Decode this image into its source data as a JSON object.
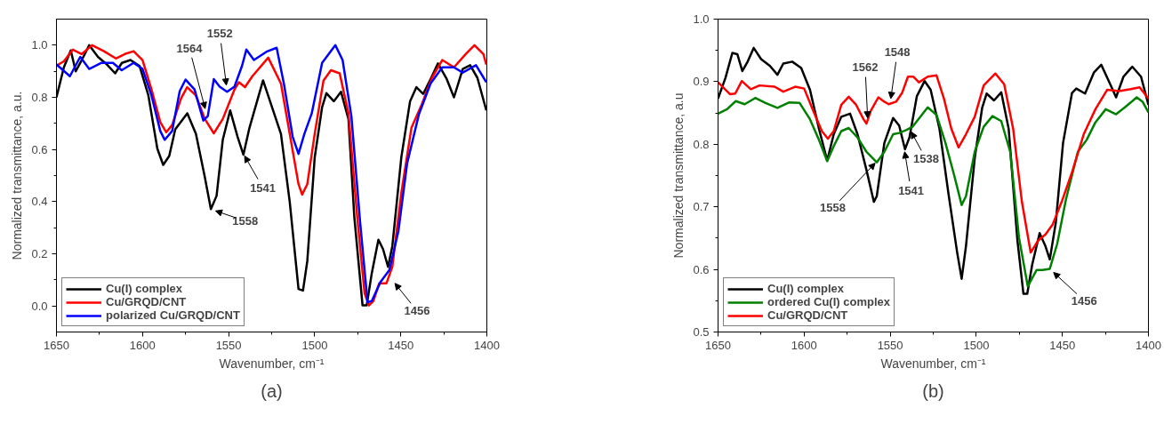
{
  "chart_data": [
    {
      "type": "line",
      "xlabel": "Wavenumber, cm⁻¹",
      "ylabel": "Normalized transmittance, a.u.",
      "xlim": [
        1650,
        1400
      ],
      "ylim": [
        -0.1,
        1.1
      ],
      "xticks": [
        1650,
        1600,
        1550,
        1500,
        1450,
        1400
      ],
      "yticks": [
        {
          "value": 0,
          "label": "0.0"
        },
        {
          "value": 0.2,
          "label": "0.2"
        },
        {
          "value": 0.4,
          "label": "0.4"
        },
        {
          "value": 0.6,
          "label": "0.6"
        },
        {
          "value": 0.8,
          "label": "0.8"
        },
        {
          "value": 1,
          "label": "1.0"
        }
      ],
      "grid": false,
      "legend": "bottom left",
      "line_style": "solid",
      "marker": "none",
      "series": [
        {
          "name": "Cu(I) complex",
          "color": "#000000",
          "x": [
            1650,
            1645.7,
            1641.7,
            1638.8,
            1635.3,
            1631,
            1625.9,
            1620.7,
            1615.9,
            1612,
            1607,
            1601.7,
            1596.6,
            1591.4,
            1588,
            1584.5,
            1581,
            1574,
            1569,
            1564,
            1560.3,
            1557,
            1553.4,
            1549.1,
            1544.8,
            1541.4,
            1537.9,
            1530,
            1519.6,
            1514.5,
            1509.4,
            1506.8,
            1504.3,
            1500,
            1495.7,
            1493.2,
            1488.9,
            1484.7,
            1480.4,
            1477,
            1472.2,
            1469.8,
            1466.8,
            1463,
            1460.3,
            1457.4,
            1454.9,
            1449.7,
            1444.6,
            1440.9,
            1437,
            1432.7,
            1428.4,
            1423.3,
            1419.1,
            1414,
            1409.7,
            1405.5,
            1400.3
          ],
          "values": [
            0.8,
            0.915,
            0.98,
            0.9,
            0.943,
            1.0,
            0.955,
            0.926,
            0.892,
            0.932,
            0.943,
            0.92,
            0.807,
            0.603,
            0.541,
            0.575,
            0.677,
            0.739,
            0.66,
            0.5,
            0.371,
            0.422,
            0.637,
            0.75,
            0.649,
            0.58,
            0.683,
            0.865,
            0.66,
            0.399,
            0.065,
            0.059,
            0.172,
            0.569,
            0.762,
            0.816,
            0.785,
            0.821,
            0.717,
            0.342,
            0.002,
            0.002,
            0.127,
            0.254,
            0.218,
            0.15,
            0.229,
            0.569,
            0.785,
            0.839,
            0.813,
            0.87,
            0.93,
            0.87,
            0.8,
            0.909,
            0.923,
            0.875,
            0.75
          ]
        },
        {
          "name": "Cu/GRQD/CNT",
          "color": "#ff0000",
          "x": [
            1650,
            1645.7,
            1640.5,
            1635.3,
            1629.3,
            1622.4,
            1615.5,
            1610.3,
            1605.2,
            1600,
            1594.8,
            1589.7,
            1586.2,
            1582.8,
            1577.6,
            1574.1,
            1569,
            1563.8,
            1558.6,
            1553.4,
            1546.6,
            1544,
            1540.5,
            1536.2,
            1527,
            1519.6,
            1514.5,
            1509.4,
            1507.3,
            1504.3,
            1500,
            1494.9,
            1490.6,
            1485.5,
            1480.4,
            1475.3,
            1471,
            1468.5,
            1465.9,
            1462.5,
            1458.3,
            1454.9,
            1449.7,
            1443.8,
            1437.8,
            1431.9,
            1425.9,
            1419.1,
            1412.3,
            1407.2,
            1402,
            1400.3
          ],
          "values": [
            0.921,
            0.938,
            0.983,
            0.966,
            1.0,
            0.977,
            0.949,
            0.966,
            0.977,
            0.943,
            0.83,
            0.705,
            0.666,
            0.694,
            0.796,
            0.839,
            0.807,
            0.717,
            0.662,
            0.717,
            0.83,
            0.858,
            0.839,
            0.881,
            0.952,
            0.853,
            0.66,
            0.467,
            0.427,
            0.467,
            0.66,
            0.864,
            0.904,
            0.892,
            0.739,
            0.342,
            0.048,
            0.002,
            0.019,
            0.087,
            0.087,
            0.15,
            0.433,
            0.683,
            0.773,
            0.875,
            0.943,
            0.915,
            0.966,
            1.0,
            0.966,
            0.926
          ]
        },
        {
          "name": "polarized Cu/GRQD/CNT",
          "color": "#0000ff",
          "x": [
            1650,
            1642.2,
            1636.2,
            1631,
            1624.1,
            1617.2,
            1612.1,
            1605.2,
            1600,
            1594.8,
            1589.7,
            1587.1,
            1582.8,
            1578.4,
            1575,
            1569.8,
            1564.7,
            1562.1,
            1558.6,
            1555.2,
            1550.9,
            1546.6,
            1542.2,
            1539.7,
            1535.3,
            1528,
            1522.1,
            1517.9,
            1512.8,
            1509.4,
            1506,
            1501.7,
            1495.7,
            1488,
            1483.8,
            1478.7,
            1473.6,
            1469.3,
            1466.8,
            1461.7,
            1456.6,
            1451.4,
            1446.3,
            1439.5,
            1432.7,
            1425.9,
            1419.1,
            1414,
            1406.3,
            1400.3
          ],
          "values": [
            0.926,
            0.881,
            0.955,
            0.909,
            0.932,
            0.932,
            0.904,
            0.932,
            0.909,
            0.807,
            0.671,
            0.637,
            0.671,
            0.824,
            0.868,
            0.83,
            0.711,
            0.728,
            0.87,
            0.841,
            0.821,
            0.841,
            0.921,
            0.983,
            0.943,
            0.975,
            0.99,
            0.853,
            0.649,
            0.583,
            0.66,
            0.739,
            0.932,
            1.0,
            0.943,
            0.728,
            0.32,
            0.014,
            0.019,
            0.093,
            0.138,
            0.286,
            0.547,
            0.734,
            0.853,
            0.915,
            0.915,
            0.895,
            0.923,
            0.858
          ]
        }
      ],
      "annotations": [
        {
          "text": "1564",
          "x": 1563,
          "y": 0.74
        },
        {
          "text": "1552",
          "x": 1551,
          "y": 0.83
        },
        {
          "text": "1558",
          "x": 1560,
          "y": 0.37
        },
        {
          "text": "1541",
          "x": 1542,
          "y": 0.59
        },
        {
          "text": "1456",
          "x": 1455,
          "y": 0.1
        },
        "(a)"
      ]
    },
    {
      "type": "line",
      "xlabel": "Wavenumber, cm⁻¹",
      "ylabel": "Normalized transmittance, a.u",
      "xlim": [
        1650,
        1400
      ],
      "ylim": [
        0.5,
        1.0
      ],
      "xticks": [
        1650,
        1600,
        1550,
        1500,
        1450,
        1400
      ],
      "yticks": [
        {
          "value": 0.5,
          "label": "0.5"
        },
        {
          "value": 0.6,
          "label": "0.6"
        },
        {
          "value": 0.7,
          "label": "0.7"
        },
        {
          "value": 0.8,
          "label": "0.8"
        },
        {
          "value": 0.9,
          "label": "0.9"
        },
        {
          "value": 1.0,
          "label": "1.0"
        }
      ],
      "grid": false,
      "legend": "bottom left",
      "line_style": "solid",
      "marker": "none",
      "series": [
        {
          "name": "Cu(I) complex",
          "color": "#000000",
          "x": [
            1650,
            1645.7,
            1641.7,
            1638.8,
            1635.9,
            1632.8,
            1629.3,
            1625,
            1619.8,
            1615.5,
            1612.1,
            1606.9,
            1601.7,
            1596.6,
            1591.4,
            1586.6,
            1582.8,
            1578.4,
            1573.3,
            1569,
            1563.8,
            1559.5,
            1557.8,
            1553.4,
            1548.3,
            1544.8,
            1541.4,
            1538.8,
            1534.5,
            1530,
            1526.5,
            1521.4,
            1516.2,
            1511.1,
            1508.5,
            1506,
            1500.9,
            1496.6,
            1494,
            1489.7,
            1485.5,
            1481.2,
            1476.1,
            1472.6,
            1470.4,
            1467.5,
            1463.2,
            1459.8,
            1457.3,
            1453.8,
            1449.6,
            1444.4,
            1441.9,
            1436.8,
            1431.6,
            1427.4,
            1422.2,
            1418.8,
            1414.5,
            1409.4,
            1404.3,
            1400
          ],
          "values": [
            0.873,
            0.906,
            0.946,
            0.944,
            0.917,
            0.932,
            0.954,
            0.936,
            0.925,
            0.911,
            0.929,
            0.932,
            0.922,
            0.887,
            0.825,
            0.774,
            0.816,
            0.844,
            0.849,
            0.816,
            0.759,
            0.708,
            0.717,
            0.802,
            0.842,
            0.83,
            0.792,
            0.811,
            0.877,
            0.901,
            0.887,
            0.825,
            0.722,
            0.627,
            0.585,
            0.637,
            0.778,
            0.858,
            0.881,
            0.87,
            0.883,
            0.825,
            0.646,
            0.561,
            0.561,
            0.608,
            0.658,
            0.637,
            0.616,
            0.675,
            0.802,
            0.882,
            0.889,
            0.881,
            0.915,
            0.927,
            0.896,
            0.875,
            0.908,
            0.924,
            0.908,
            0.863
          ]
        },
        {
          "name": "ordered Cu(I) complex",
          "color": "#008000",
          "x": [
            1650,
            1644.8,
            1639.7,
            1634.5,
            1628.4,
            1622.4,
            1615.5,
            1608.6,
            1602.6,
            1596.6,
            1591.4,
            1586.6,
            1582.8,
            1578.4,
            1574.1,
            1569,
            1563.8,
            1557.8,
            1553.4,
            1548.3,
            1544.8,
            1540.5,
            1537,
            1528.2,
            1523.1,
            1517.9,
            1512.8,
            1508.5,
            1506,
            1500.9,
            1495.7,
            1490.6,
            1485.5,
            1480.3,
            1475.2,
            1470.1,
            1465,
            1461.5,
            1457.3,
            1453,
            1447.9,
            1441,
            1435.9,
            1430.8,
            1424.8,
            1418.8,
            1413.7,
            1406.8,
            1403.4,
            1400
          ],
          "values": [
            0.849,
            0.856,
            0.869,
            0.864,
            0.874,
            0.866,
            0.858,
            0.867,
            0.866,
            0.84,
            0.807,
            0.773,
            0.797,
            0.821,
            0.826,
            0.811,
            0.788,
            0.771,
            0.788,
            0.816,
            0.818,
            0.823,
            0.828,
            0.859,
            0.847,
            0.802,
            0.75,
            0.703,
            0.717,
            0.788,
            0.828,
            0.845,
            0.837,
            0.788,
            0.651,
            0.573,
            0.599,
            0.599,
            0.601,
            0.641,
            0.712,
            0.788,
            0.807,
            0.835,
            0.856,
            0.848,
            0.859,
            0.875,
            0.868,
            0.851
          ]
        },
        {
          "name": "Cu/GRQD/CNT",
          "color": "#ff0000",
          "x": [
            1650,
            1643.1,
            1640,
            1636.2,
            1631,
            1625.9,
            1617.2,
            1612.1,
            1605.2,
            1600,
            1594.8,
            1589.7,
            1586.2,
            1582.8,
            1578.4,
            1574.1,
            1569.8,
            1565.5,
            1563.8,
            1561.2,
            1556.9,
            1553.4,
            1550.9,
            1546.6,
            1543.1,
            1539.7,
            1536.5,
            1533.3,
            1528.2,
            1523.1,
            1518.8,
            1514.5,
            1510.3,
            1506,
            1500.9,
            1495.7,
            1488.9,
            1483.8,
            1478.6,
            1473.5,
            1468.4,
            1464.1,
            1459.8,
            1455.6,
            1450.4,
            1444.4,
            1437.6,
            1430.8,
            1424,
            1417.1,
            1410.3,
            1405.1,
            1400
          ],
          "values": [
            0.899,
            0.88,
            0.881,
            0.901,
            0.888,
            0.894,
            0.892,
            0.884,
            0.892,
            0.889,
            0.854,
            0.821,
            0.809,
            0.821,
            0.863,
            0.876,
            0.863,
            0.84,
            0.833,
            0.854,
            0.875,
            0.868,
            0.864,
            0.868,
            0.882,
            0.908,
            0.908,
            0.899,
            0.908,
            0.91,
            0.873,
            0.825,
            0.795,
            0.816,
            0.844,
            0.894,
            0.913,
            0.896,
            0.825,
            0.708,
            0.627,
            0.646,
            0.656,
            0.672,
            0.708,
            0.755,
            0.816,
            0.856,
            0.887,
            0.885,
            0.888,
            0.891,
            0.873
          ]
        }
      ],
      "annotations": [
        {
          "text": "1562",
          "x": 1563,
          "y": 0.835
        },
        {
          "text": "1548",
          "x": 1550,
          "y": 0.866
        },
        {
          "text": "1558",
          "x": 1557,
          "y": 0.775
        },
        {
          "text": "1538",
          "x": 1539,
          "y": 0.826
        },
        {
          "text": "1541",
          "x": 1542,
          "y": 0.795
        },
        {
          "text": "1456",
          "x": 1457,
          "y": 0.6
        },
        "(b)"
      ]
    }
  ]
}
